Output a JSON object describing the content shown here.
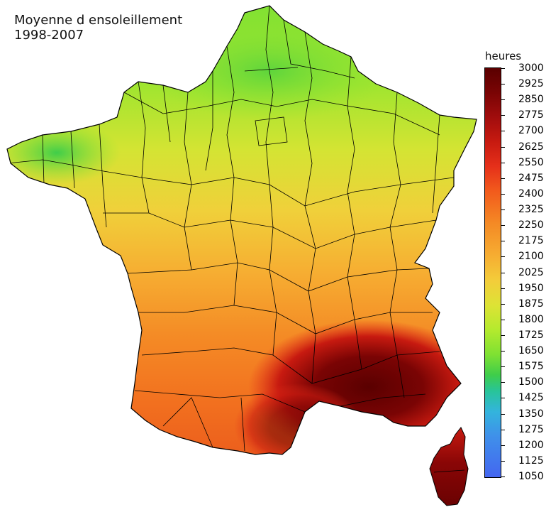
{
  "map": {
    "title_line1": "Moyenne d ensoleillement",
    "title_line2": "1998-2007",
    "legend_unit": "heures",
    "legend_values": [
      "3000",
      "2925",
      "2850",
      "2775",
      "2700",
      "2625",
      "2550",
      "2475",
      "2400",
      "2325",
      "2250",
      "2175",
      "2100",
      "2025",
      "1950",
      "1875",
      "1800",
      "1725",
      "1650",
      "1575",
      "1500",
      "1425",
      "1350",
      "1275",
      "1200",
      "1125",
      "1050"
    ],
    "scale_min": 1050,
    "scale_max": 3000,
    "colors": {
      "low": "#4466f0",
      "mid": "#b4ea2e",
      "high": "#5a0000"
    }
  }
}
